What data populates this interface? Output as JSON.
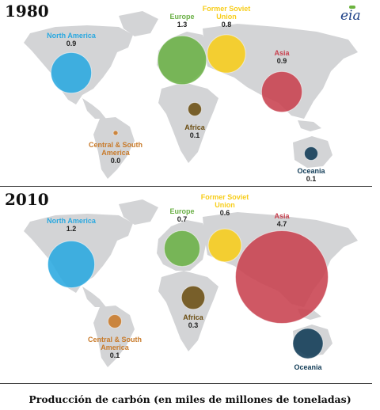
{
  "logo_text": "eia",
  "caption": "Producción de carbón (en miles de millones de toneladas)",
  "colors": {
    "land": "#d3d4d6",
    "north_america": "#29a8e0",
    "central_south_america": "#c87a2a",
    "europe": "#6ab045",
    "former_soviet_union": "#f7cd1a",
    "asia": "#c8414f",
    "africa": "#6b4e12",
    "oceania": "#0f3a55"
  },
  "panels": [
    {
      "year": "1980",
      "regions": [
        {
          "name": "North America",
          "value": "0.9",
          "amount": 0.9,
          "color_key": "north_america"
        },
        {
          "name": "Europe",
          "value": "1.3",
          "amount": 1.3,
          "color_key": "europe"
        },
        {
          "name": "Former Soviet Union",
          "value": "0.8",
          "amount": 0.8,
          "color_key": "former_soviet_union"
        },
        {
          "name": "Asia",
          "value": "0.9",
          "amount": 0.9,
          "color_key": "asia"
        },
        {
          "name": "Africa",
          "value": "0.1",
          "amount": 0.1,
          "color_key": "africa"
        },
        {
          "name": "Central & South America",
          "value": "0.0",
          "amount": 0.01,
          "color_key": "central_south_america"
        },
        {
          "name": "Oceania",
          "value": "0.1",
          "amount": 0.1,
          "color_key": "oceania"
        }
      ]
    },
    {
      "year": "2010",
      "regions": [
        {
          "name": "North America",
          "value": "1.2",
          "amount": 1.2,
          "color_key": "north_america"
        },
        {
          "name": "Europe",
          "value": "0.7",
          "amount": 0.7,
          "color_key": "europe"
        },
        {
          "name": "Former Soviet Union",
          "value": "0.6",
          "amount": 0.6,
          "color_key": "former_soviet_union"
        },
        {
          "name": "Asia",
          "value": "4.7",
          "amount": 4.7,
          "color_key": "asia"
        },
        {
          "name": "Africa",
          "value": "0.3",
          "amount": 0.3,
          "color_key": "africa"
        },
        {
          "name": "Central & South America",
          "value": "0.1",
          "amount": 0.1,
          "color_key": "central_south_america"
        },
        {
          "name": "Oceania",
          "value": "0.5",
          "amount": 0.5,
          "color_key": "oceania"
        }
      ]
    }
  ]
}
